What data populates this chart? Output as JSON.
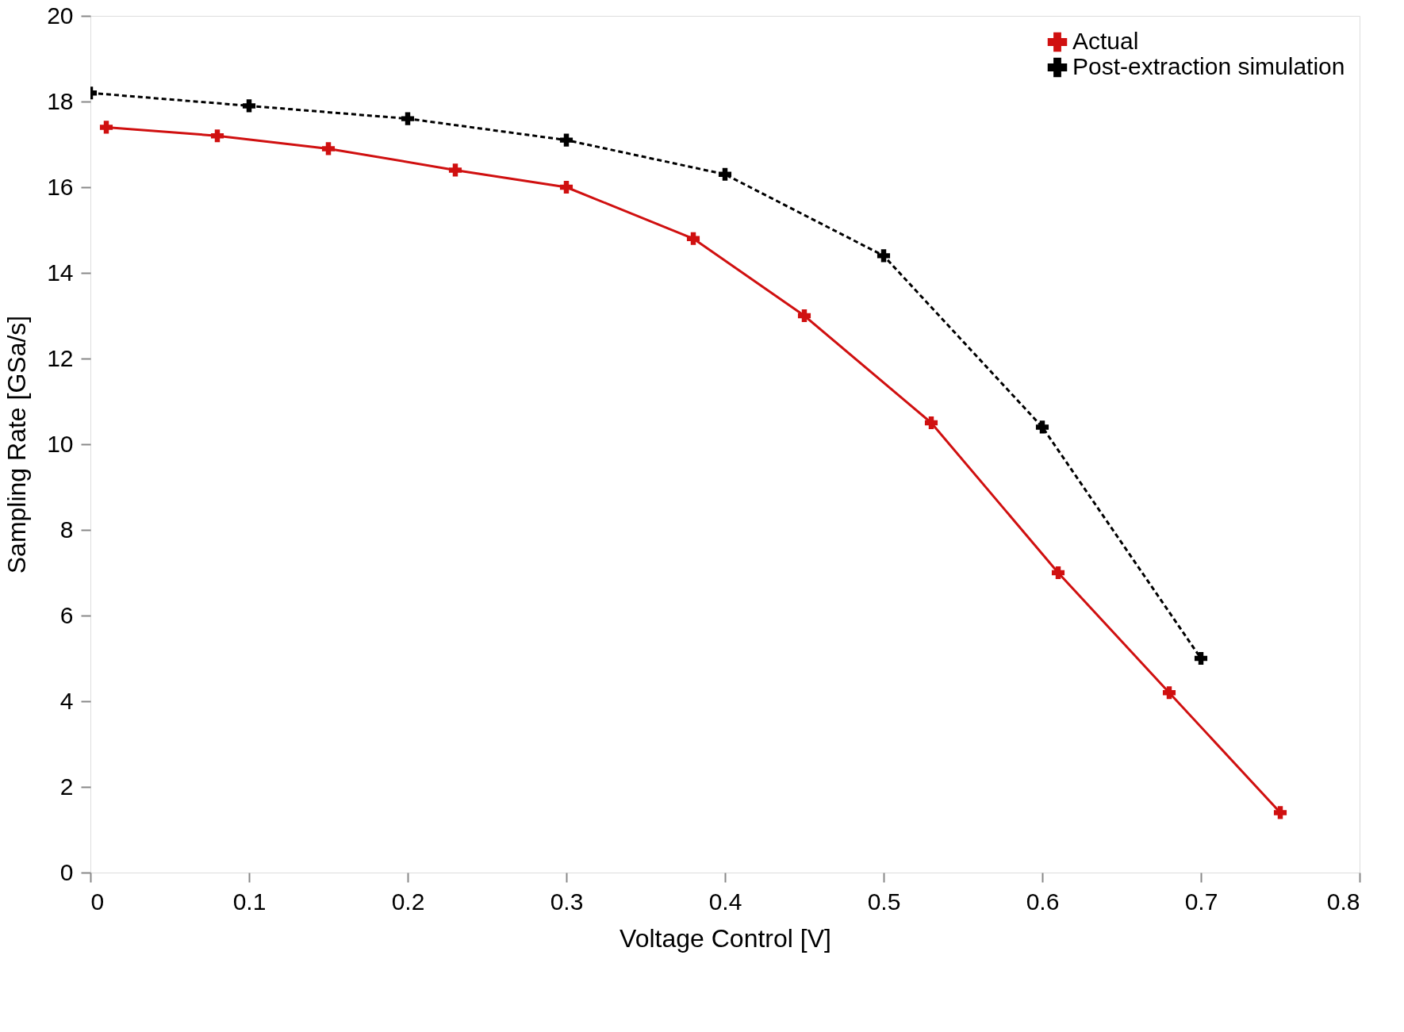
{
  "chart_data": {
    "type": "line",
    "xlabel": "Voltage Control [V]",
    "ylabel": "Sampling Rate [GSa/s]",
    "xlim": [
      0,
      0.8
    ],
    "xticks": [
      0,
      0.1,
      0.2,
      0.3,
      0.4,
      0.5,
      0.6,
      0.7,
      0.8
    ],
    "ylim": [
      0,
      20
    ],
    "yticks": [
      0,
      2,
      4,
      6,
      8,
      10,
      12,
      14,
      16,
      18,
      20
    ],
    "grid": false,
    "legend": "top right",
    "marker": "cross",
    "series": [
      {
        "name": "Actual",
        "color": "#d01010",
        "line_style": "solid",
        "x": [
          0.01,
          0.08,
          0.15,
          0.23,
          0.3,
          0.38,
          0.45,
          0.53,
          0.61,
          0.68,
          0.75
        ],
        "values": [
          17.4,
          17.2,
          16.9,
          16.4,
          16.0,
          14.8,
          13.0,
          10.5,
          7.0,
          4.2,
          1.4
        ]
      },
      {
        "name": "Post-extraction simulation",
        "color": "#000000",
        "line_style": "dashed",
        "x": [
          0,
          0.1,
          0.2,
          0.3,
          0.4,
          0.5,
          0.6,
          0.7
        ],
        "values": [
          18.2,
          17.9,
          17.6,
          17.1,
          16.3,
          14.4,
          10.4,
          5.0
        ]
      }
    ]
  }
}
